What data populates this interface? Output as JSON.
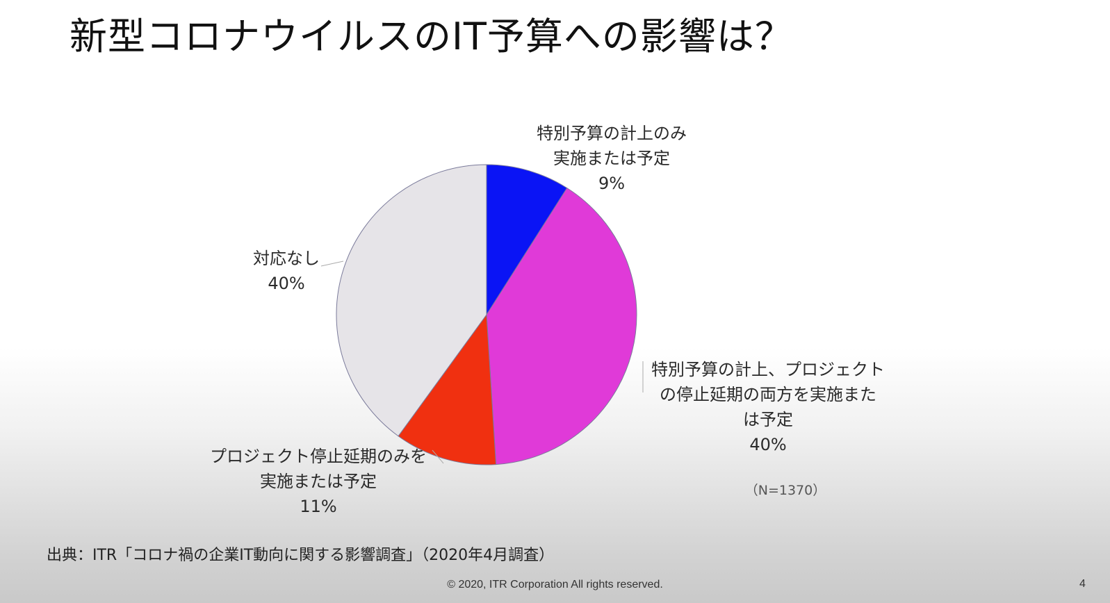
{
  "slide": {
    "title": "新型コロナウイルスのIT予算への影響は？",
    "source": "出典：ITR「コロナ禍の企業IT動向に関する影響調査」（2020年4月調査）",
    "copyright": "© 2020, ITR Corporation  All rights reserved.",
    "page_number": "4"
  },
  "chart_data": {
    "type": "pie",
    "title": "",
    "note": "（N=1370）",
    "slices": [
      {
        "label_lines": [
          "特別予算の計上のみ",
          "実施または予定"
        ],
        "value": 9,
        "value_label": "9%",
        "color": "#0a14f5"
      },
      {
        "label_lines": [
          "特別予算の計上、プロジェクト",
          "の停止延期の両方を実施また",
          "は予定"
        ],
        "value": 40,
        "value_label": "40%",
        "color": "#e03ad8"
      },
      {
        "label_lines": [
          "プロジェクト停止延期のみを",
          "実施または予定"
        ],
        "value": 11,
        "value_label": "11%",
        "color": "#f03010"
      },
      {
        "label_lines": [
          "対応なし"
        ],
        "value": 40,
        "value_label": "40%",
        "color": "#e6e4e8"
      }
    ]
  }
}
